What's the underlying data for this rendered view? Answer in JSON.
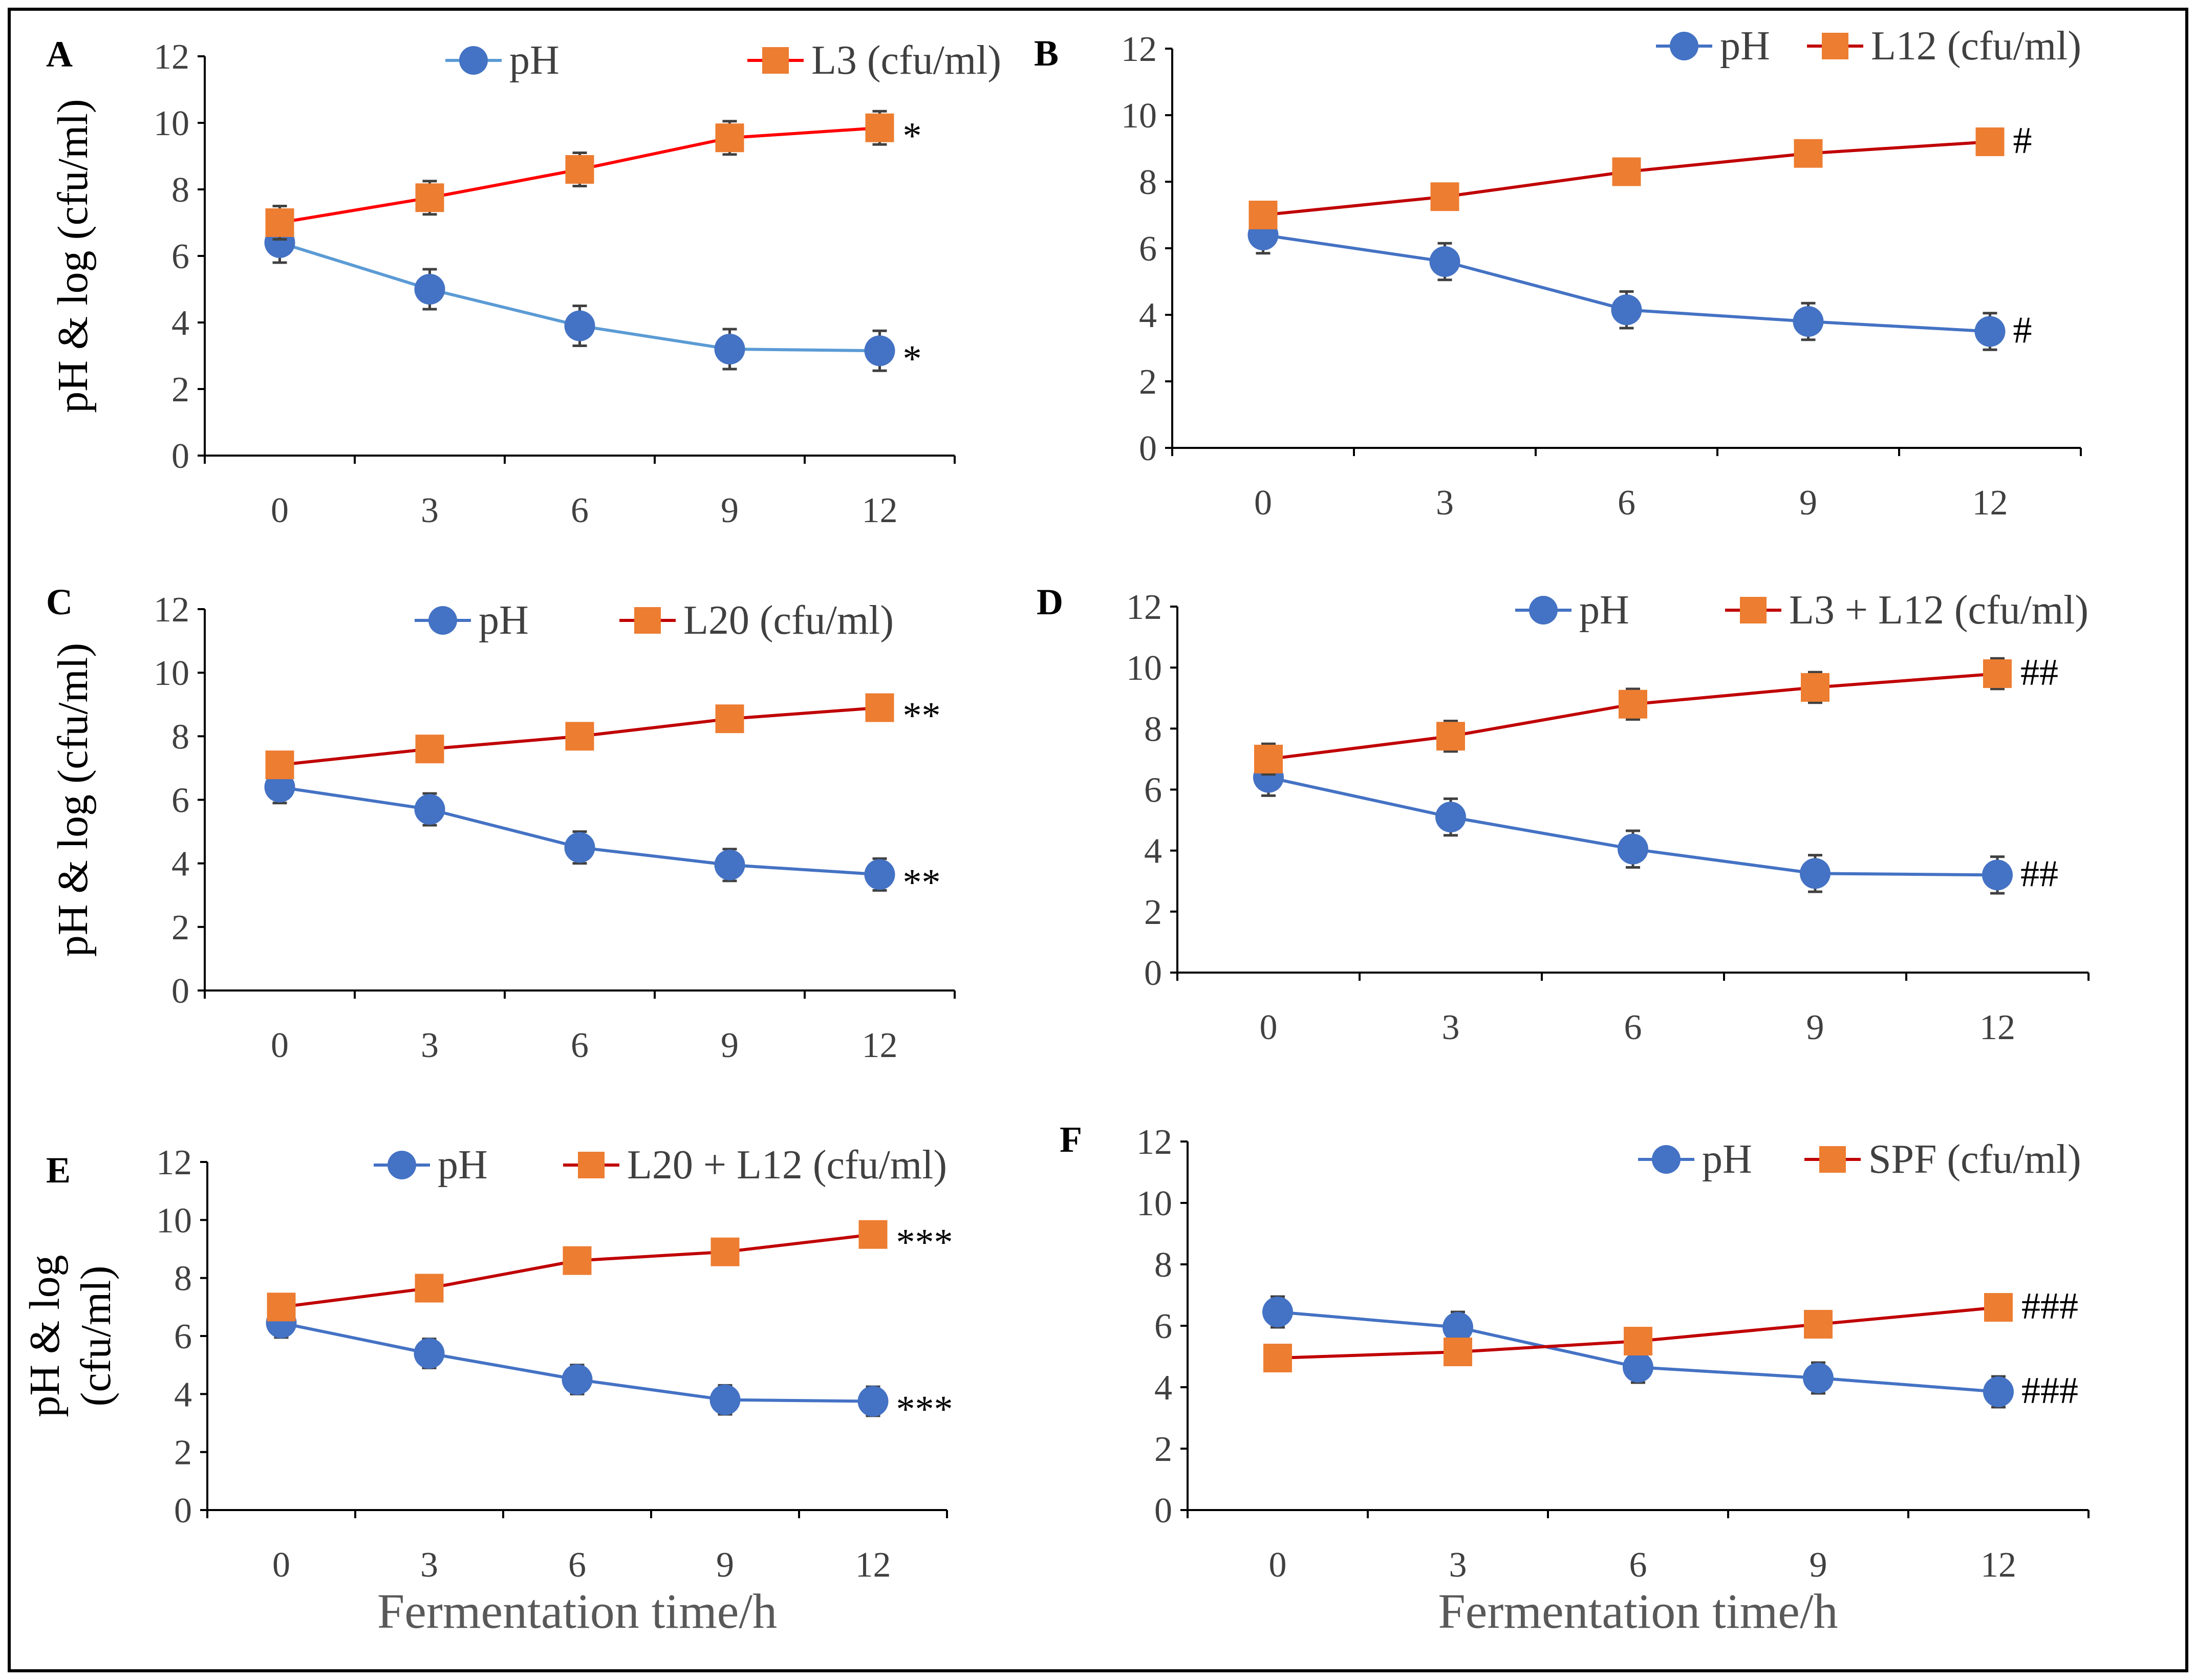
{
  "chart_data": [
    {
      "panel": "A",
      "type": "line",
      "x": [
        0,
        3,
        6,
        9,
        12
      ],
      "xticks": [
        "0",
        "3",
        "6",
        "9",
        "12"
      ],
      "ylim": [
        0,
        12
      ],
      "yticks": [
        "0",
        "2",
        "4",
        "6",
        "8",
        "10",
        "12"
      ],
      "ylabel_lines": [
        "pH & log (cfu/ml)"
      ],
      "xlabel": "",
      "series": [
        {
          "name": "pH",
          "values": [
            6.4,
            5.0,
            3.9,
            3.2,
            3.15
          ],
          "err": [
            0.6,
            0.6,
            0.6,
            0.6,
            0.6
          ],
          "color": "#4472C4",
          "line_color": "#5B9BD5",
          "marker": "circle",
          "annotation": "*"
        },
        {
          "name": "L3 (cfu/ml)",
          "values": [
            7.0,
            7.75,
            8.6,
            9.55,
            9.85
          ],
          "err": [
            0.5,
            0.5,
            0.5,
            0.5,
            0.5
          ],
          "color": "#ED7D31",
          "line_color": "#FF0000",
          "marker": "square",
          "annotation": "*"
        }
      ]
    },
    {
      "panel": "B",
      "type": "line",
      "x": [
        0,
        3,
        6,
        9,
        12
      ],
      "xticks": [
        "0",
        "3",
        "6",
        "9",
        "12"
      ],
      "ylim": [
        0,
        12
      ],
      "yticks": [
        "0",
        "2",
        "4",
        "6",
        "8",
        "10",
        "12"
      ],
      "ylabel_lines": [],
      "xlabel": "",
      "series": [
        {
          "name": "pH",
          "values": [
            6.4,
            5.6,
            4.15,
            3.8,
            3.5
          ],
          "err": [
            0.55,
            0.55,
            0.55,
            0.55,
            0.55
          ],
          "color": "#4472C4",
          "line_color": "#4472C4",
          "marker": "circle",
          "annotation": "#"
        },
        {
          "name": "L12 (cfu/ml)",
          "values": [
            7.0,
            7.55,
            8.3,
            8.85,
            9.2
          ],
          "err": [
            0.35,
            0.35,
            0.35,
            0.35,
            0.35
          ],
          "color": "#ED7D31",
          "line_color": "#C00000",
          "marker": "square",
          "annotation": "#"
        }
      ]
    },
    {
      "panel": "C",
      "type": "line",
      "x": [
        0,
        3,
        6,
        9,
        12
      ],
      "xticks": [
        "0",
        "3",
        "6",
        "9",
        "12"
      ],
      "ylim": [
        0,
        12
      ],
      "yticks": [
        "0",
        "2",
        "4",
        "6",
        "8",
        "10",
        "12"
      ],
      "ylabel_lines": [
        "pH & log (cfu/ml)"
      ],
      "xlabel": "",
      "series": [
        {
          "name": "pH",
          "values": [
            6.4,
            5.7,
            4.5,
            3.95,
            3.65
          ],
          "err": [
            0.5,
            0.5,
            0.5,
            0.5,
            0.5
          ],
          "color": "#4472C4",
          "line_color": "#4472C4",
          "marker": "circle",
          "annotation": "**"
        },
        {
          "name": "L20 (cfu/ml)",
          "values": [
            7.1,
            7.6,
            8.0,
            8.55,
            8.9
          ],
          "err": [
            0.0,
            0.0,
            0.0,
            0.0,
            0.0
          ],
          "color": "#ED7D31",
          "line_color": "#C00000",
          "marker": "square",
          "annotation": "**"
        }
      ]
    },
    {
      "panel": "D",
      "type": "line",
      "x": [
        0,
        3,
        6,
        9,
        12
      ],
      "xticks": [
        "0",
        "3",
        "6",
        "9",
        "12"
      ],
      "ylim": [
        0,
        12
      ],
      "yticks": [
        "0",
        "2",
        "4",
        "6",
        "8",
        "10",
        "12"
      ],
      "ylabel_lines": [],
      "xlabel": "",
      "series": [
        {
          "name": "pH",
          "values": [
            6.4,
            5.1,
            4.05,
            3.25,
            3.2
          ],
          "err": [
            0.6,
            0.6,
            0.6,
            0.6,
            0.6
          ],
          "color": "#4472C4",
          "line_color": "#4472C4",
          "marker": "circle",
          "annotation": "##"
        },
        {
          "name": "L3 + L12 (cfu/ml)",
          "values": [
            7.0,
            7.75,
            8.8,
            9.35,
            9.8
          ],
          "err": [
            0.5,
            0.5,
            0.5,
            0.5,
            0.5
          ],
          "color": "#ED7D31",
          "line_color": "#C00000",
          "marker": "square",
          "annotation": "##"
        }
      ]
    },
    {
      "panel": "E",
      "type": "line",
      "x": [
        0,
        3,
        6,
        9,
        12
      ],
      "xticks": [
        "0",
        "3",
        "6",
        "9",
        "12"
      ],
      "ylim": [
        0,
        12
      ],
      "yticks": [
        "0",
        "2",
        "4",
        "6",
        "8",
        "10",
        "12"
      ],
      "ylabel_lines": [
        "pH & log",
        "(cfu/ml)"
      ],
      "xlabel": "Fermentation time/h",
      "series": [
        {
          "name": "pH",
          "values": [
            6.45,
            5.4,
            4.5,
            3.8,
            3.75
          ],
          "err": [
            0.5,
            0.5,
            0.5,
            0.5,
            0.5
          ],
          "color": "#4472C4",
          "line_color": "#4472C4",
          "marker": "circle",
          "annotation": "***"
        },
        {
          "name": "L20 + L12 (cfu/ml)",
          "values": [
            7.0,
            7.65,
            8.6,
            8.9,
            9.5
          ],
          "err": [
            0.4,
            0.4,
            0.4,
            0.4,
            0.4
          ],
          "color": "#ED7D31",
          "line_color": "#C00000",
          "marker": "square",
          "annotation": "***"
        }
      ]
    },
    {
      "panel": "F",
      "type": "line",
      "x": [
        0,
        3,
        6,
        9,
        12
      ],
      "xticks": [
        "0",
        "3",
        "6",
        "9",
        "12"
      ],
      "ylim": [
        0,
        12
      ],
      "yticks": [
        "0",
        "2",
        "4",
        "6",
        "8",
        "10",
        "12"
      ],
      "ylabel_lines": [],
      "xlabel": "Fermentation time/h",
      "series": [
        {
          "name": "pH",
          "values": [
            6.45,
            5.95,
            4.65,
            4.3,
            3.85
          ],
          "err": [
            0.5,
            0.5,
            0.5,
            0.5,
            0.5
          ],
          "color": "#4472C4",
          "line_color": "#4472C4",
          "marker": "circle",
          "annotation": "###"
        },
        {
          "name": "SPF (cfu/ml)",
          "values": [
            4.95,
            5.15,
            5.5,
            6.05,
            6.6
          ],
          "err": [
            0.0,
            0.0,
            0.0,
            0.0,
            0.0
          ],
          "color": "#ED7D31",
          "line_color": "#C00000",
          "marker": "square",
          "annotation": "###"
        }
      ]
    }
  ]
}
